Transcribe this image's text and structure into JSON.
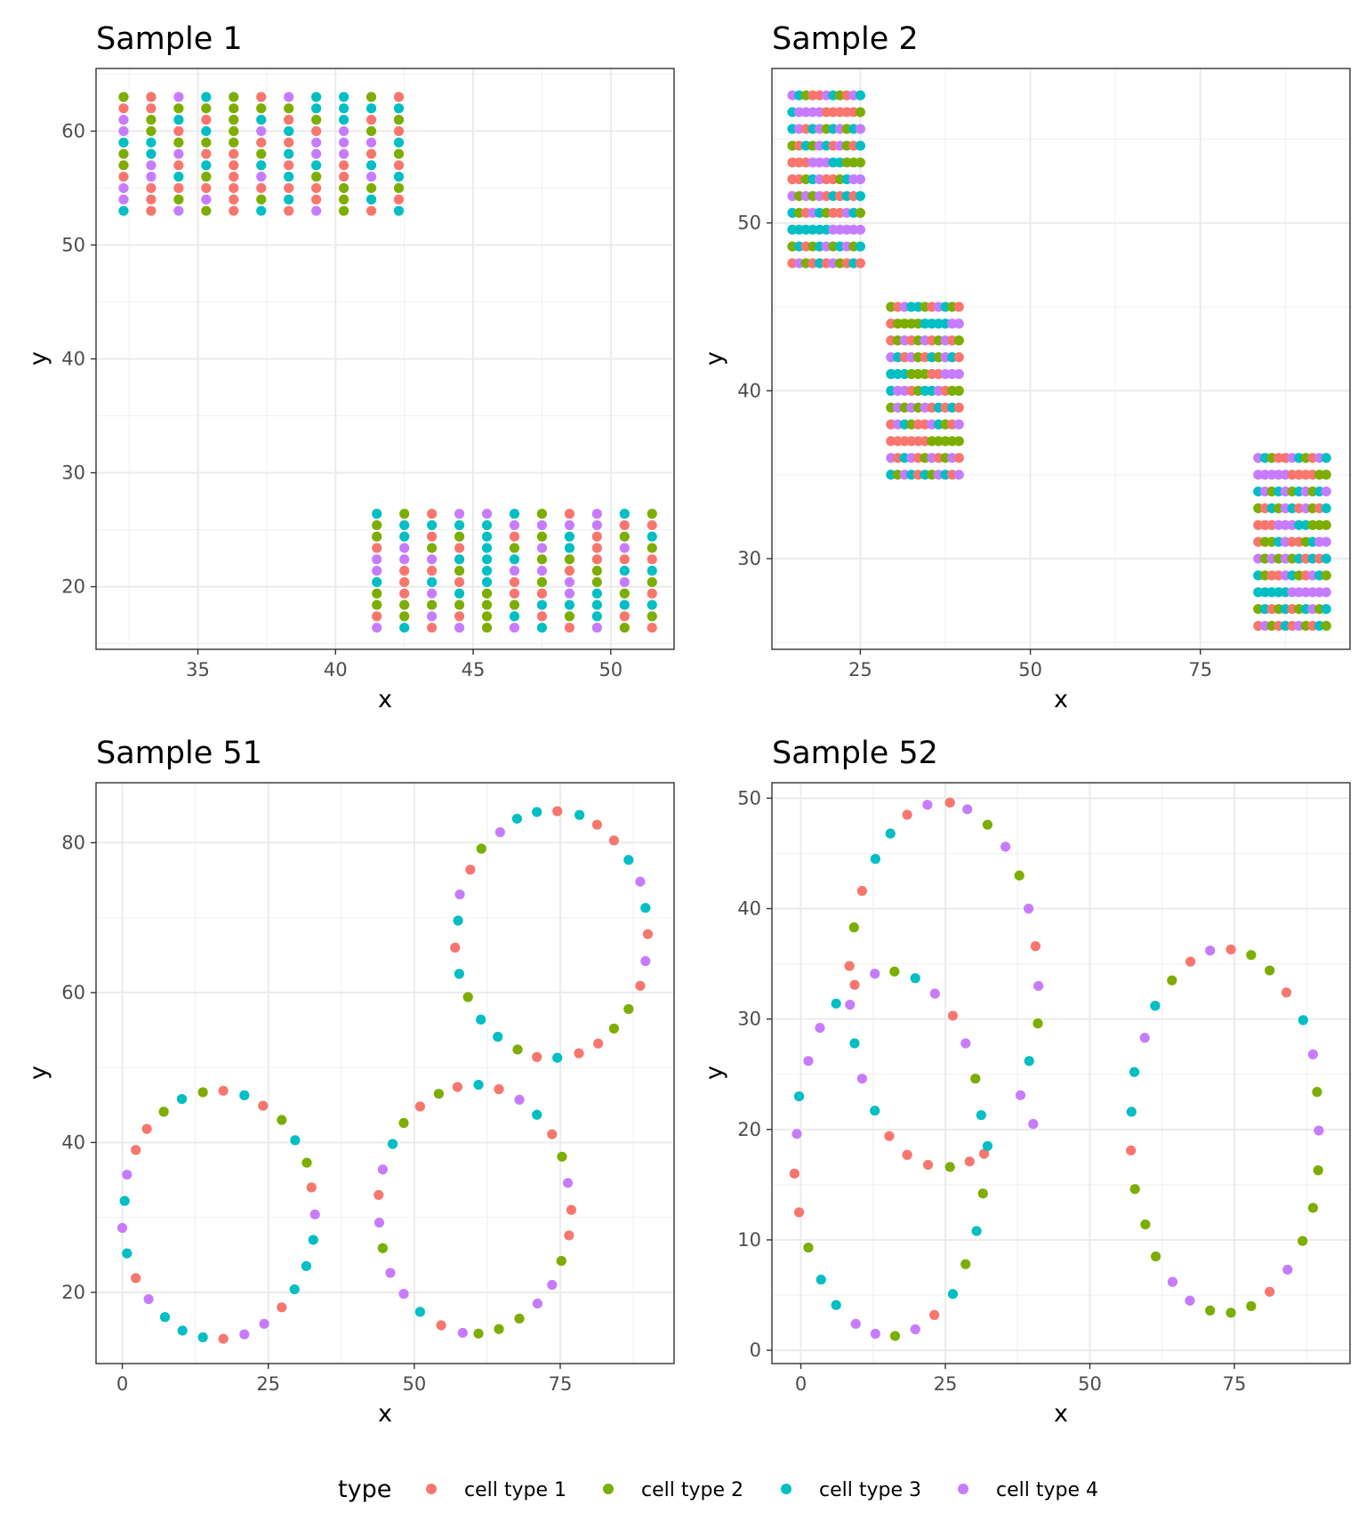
{
  "legend": {
    "title": "type",
    "entries": [
      {
        "label": "cell type 1",
        "color": "#F8766D"
      },
      {
        "label": "cell type 2",
        "color": "#7CAE00"
      },
      {
        "label": "cell type 3",
        "color": "#00BFC4"
      },
      {
        "label": "cell type 4",
        "color": "#C77CFF"
      }
    ]
  },
  "chart_data": [
    {
      "type": "scatter",
      "title": "Sample 1",
      "xlabel": "x",
      "ylabel": "y",
      "xlim": [
        31.3,
        52.3
      ],
      "ylim": [
        14.5,
        65.5
      ],
      "xticks": [
        35,
        40,
        45,
        50
      ],
      "yticks": [
        20,
        30,
        40,
        50,
        60
      ],
      "grid": true,
      "pattern": "grid",
      "groups": [
        {
          "x": [
            32.3,
            33.3,
            34.3,
            35.3,
            36.3,
            37.3,
            38.3,
            39.3,
            40.3,
            41.3,
            42.3
          ],
          "y": [
            53,
            54,
            55,
            56,
            57,
            58,
            59,
            60,
            61,
            62,
            63
          ],
          "color_seed": 3
        },
        {
          "x": [
            41.5,
            42.5,
            43.5,
            44.5,
            45.5,
            46.5,
            47.5,
            48.5,
            49.5,
            50.5,
            51.5
          ],
          "y": [
            16.4,
            17.4,
            18.4,
            19.4,
            20.4,
            21.4,
            22.4,
            23.4,
            24.4,
            25.4,
            26.4
          ],
          "color_seed": 11
        }
      ]
    },
    {
      "type": "scatter",
      "title": "Sample 2",
      "xlabel": "x",
      "ylabel": "y",
      "xlim": [
        12,
        97
      ],
      "ylim": [
        24.6,
        59.2
      ],
      "xticks": [
        25,
        50,
        75
      ],
      "yticks": [
        30,
        40,
        50
      ],
      "grid": true,
      "pattern": "grid",
      "groups": [
        {
          "x": [
            15,
            16,
            17,
            18,
            19,
            20,
            21,
            22,
            23,
            24,
            25
          ],
          "y": [
            47.6,
            48.6,
            49.6,
            50.6,
            51.6,
            52.6,
            53.6,
            54.6,
            55.6,
            56.6,
            57.6
          ],
          "color_seed": 5
        },
        {
          "x": [
            29.5,
            30.5,
            31.5,
            32.5,
            33.5,
            34.5,
            35.5,
            36.5,
            37.5,
            38.5,
            39.5
          ],
          "y": [
            35,
            36,
            37,
            38,
            39,
            40,
            41,
            42,
            43,
            44,
            45
          ],
          "color_seed": 17
        },
        {
          "x": [
            83.5,
            84.5,
            85.5,
            86.5,
            87.5,
            88.5,
            89.5,
            90.5,
            91.5,
            92.5,
            93.5
          ],
          "y": [
            26,
            27,
            28,
            29,
            30,
            31,
            32,
            33,
            34,
            35,
            36
          ],
          "color_seed": 29
        }
      ]
    },
    {
      "type": "scatter",
      "title": "Sample 51",
      "xlabel": "x",
      "ylabel": "y",
      "xlim": [
        -4.5,
        94.5
      ],
      "ylim": [
        10.5,
        88
      ],
      "xticks": [
        0,
        25,
        50,
        75
      ],
      "yticks": [
        20,
        40,
        60,
        80
      ],
      "grid": true,
      "pattern": "points",
      "points": [
        [
          0,
          28.6,
          3
        ],
        [
          0.4,
          32.2,
          2
        ],
        [
          0.8,
          25.2,
          2
        ],
        [
          0.8,
          35.7,
          3
        ],
        [
          2.3,
          39,
          0
        ],
        [
          2.3,
          21.9,
          0
        ],
        [
          4.2,
          41.8,
          0
        ],
        [
          4.5,
          19.1,
          3
        ],
        [
          7.1,
          44.1,
          1
        ],
        [
          7.3,
          16.7,
          2
        ],
        [
          10.2,
          45.8,
          2
        ],
        [
          10.3,
          14.9,
          2
        ],
        [
          13.8,
          46.7,
          1
        ],
        [
          13.8,
          14,
          2
        ],
        [
          17.3,
          46.9,
          0
        ],
        [
          17.3,
          13.8,
          0
        ],
        [
          20.9,
          46.3,
          2
        ],
        [
          20.9,
          14.4,
          3
        ],
        [
          24.1,
          44.9,
          0
        ],
        [
          24.3,
          15.8,
          3
        ],
        [
          27.3,
          43,
          1
        ],
        [
          27.3,
          18,
          0
        ],
        [
          29.6,
          40.3,
          2
        ],
        [
          29.5,
          20.4,
          2
        ],
        [
          31.6,
          37.3,
          1
        ],
        [
          31.5,
          23.5,
          2
        ],
        [
          32.4,
          34,
          0
        ],
        [
          32.7,
          27,
          2
        ],
        [
          33,
          30.4,
          3
        ],
        [
          43.9,
          33,
          0
        ],
        [
          44,
          29.3,
          3
        ],
        [
          44.6,
          36.4,
          3
        ],
        [
          44.6,
          25.9,
          1
        ],
        [
          45.9,
          22.6,
          3
        ],
        [
          46.3,
          39.8,
          2
        ],
        [
          48.2,
          42.6,
          1
        ],
        [
          48.2,
          19.8,
          3
        ],
        [
          51,
          44.8,
          0
        ],
        [
          51,
          17.4,
          2
        ],
        [
          54.2,
          46.5,
          1
        ],
        [
          54.6,
          15.6,
          0
        ],
        [
          57.4,
          47.4,
          0
        ],
        [
          58.3,
          14.6,
          3
        ],
        [
          61,
          47.7,
          2
        ],
        [
          61,
          14.5,
          1
        ],
        [
          64.5,
          47.1,
          0
        ],
        [
          64.5,
          15.1,
          1
        ],
        [
          68,
          45.7,
          3
        ],
        [
          68,
          16.5,
          1
        ],
        [
          71,
          43.7,
          2
        ],
        [
          71.1,
          18.5,
          3
        ],
        [
          73.6,
          41.1,
          0
        ],
        [
          73.6,
          21,
          3
        ],
        [
          75.3,
          38.1,
          1
        ],
        [
          75.2,
          24.2,
          1
        ],
        [
          76.3,
          34.6,
          3
        ],
        [
          76.5,
          27.6,
          0
        ],
        [
          76.9,
          31,
          0
        ],
        [
          57,
          66,
          0
        ],
        [
          57.5,
          69.6,
          2
        ],
        [
          57.7,
          62.5,
          2
        ],
        [
          57.8,
          73.1,
          3
        ],
        [
          59.2,
          59.4,
          1
        ],
        [
          59.6,
          76.4,
          0
        ],
        [
          61.4,
          56.4,
          2
        ],
        [
          61.5,
          79.2,
          1
        ],
        [
          64.3,
          54.1,
          2
        ],
        [
          64.7,
          81.4,
          3
        ],
        [
          67.7,
          52.4,
          1
        ],
        [
          67.6,
          83.2,
          2
        ],
        [
          71,
          51.4,
          0
        ],
        [
          71,
          84.1,
          2
        ],
        [
          74.5,
          51.3,
          2
        ],
        [
          74.5,
          84.2,
          0
        ],
        [
          78.2,
          51.9,
          0
        ],
        [
          78.3,
          83.7,
          2
        ],
        [
          81.5,
          53.2,
          0
        ],
        [
          81.3,
          82.4,
          0
        ],
        [
          84.2,
          55.2,
          1
        ],
        [
          84.2,
          80.3,
          0
        ],
        [
          86.7,
          57.8,
          1
        ],
        [
          86.7,
          77.7,
          2
        ],
        [
          88.7,
          60.9,
          0
        ],
        [
          88.7,
          74.8,
          3
        ],
        [
          89.6,
          64.2,
          3
        ],
        [
          89.6,
          71.3,
          2
        ],
        [
          90,
          67.8,
          0
        ]
      ]
    },
    {
      "type": "scatter",
      "title": "Sample 52",
      "xlabel": "x",
      "ylabel": "y",
      "xlim": [
        -5,
        95
      ],
      "ylim": [
        -1.2,
        51.4
      ],
      "xticks": [
        0,
        25,
        50,
        75
      ],
      "yticks": [
        0,
        10,
        20,
        30,
        40,
        50
      ],
      "grid": true,
      "pattern": "points",
      "points": [
        [
          -1.1,
          16,
          0
        ],
        [
          -0.7,
          19.6,
          3
        ],
        [
          -0.3,
          12.5,
          0
        ],
        [
          -0.3,
          23,
          2
        ],
        [
          1.3,
          26.2,
          3
        ],
        [
          1.3,
          9.3,
          1
        ],
        [
          3.3,
          29.2,
          3
        ],
        [
          3.5,
          6.4,
          2
        ],
        [
          6.1,
          31.4,
          2
        ],
        [
          6.1,
          4.1,
          2
        ],
        [
          8.4,
          34.8,
          0
        ],
        [
          8.5,
          31.3,
          3
        ],
        [
          9.3,
          33.1,
          0
        ],
        [
          9.3,
          27.8,
          2
        ],
        [
          9.2,
          38.3,
          1
        ],
        [
          9.5,
          2.4,
          3
        ],
        [
          10.6,
          24.6,
          3
        ],
        [
          10.6,
          41.6,
          0
        ],
        [
          12.8,
          34.1,
          3
        ],
        [
          12.8,
          21.7,
          2
        ],
        [
          12.9,
          1.5,
          3
        ],
        [
          12.9,
          44.5,
          2
        ],
        [
          15.3,
          19.4,
          0
        ],
        [
          15.5,
          46.8,
          2
        ],
        [
          16.2,
          34.3,
          1
        ],
        [
          16.3,
          1.3,
          1
        ],
        [
          18.4,
          17.7,
          0
        ],
        [
          18.4,
          48.5,
          0
        ],
        [
          19.8,
          33.7,
          2
        ],
        [
          19.8,
          1.9,
          3
        ],
        [
          21.9,
          49.4,
          3
        ],
        [
          22,
          16.8,
          0
        ],
        [
          23.2,
          32.3,
          3
        ],
        [
          23.1,
          3.2,
          0
        ],
        [
          25.8,
          16.6,
          1
        ],
        [
          25.8,
          49.6,
          0
        ],
        [
          26.3,
          30.3,
          0
        ],
        [
          26.3,
          5.1,
          2
        ],
        [
          28.5,
          27.8,
          3
        ],
        [
          28.5,
          7.8,
          1
        ],
        [
          28.8,
          49,
          3
        ],
        [
          29.2,
          17.1,
          0
        ],
        [
          30.2,
          24.6,
          1
        ],
        [
          30.4,
          10.8,
          2
        ],
        [
          31.2,
          21.3,
          2
        ],
        [
          31.5,
          14.2,
          1
        ],
        [
          31.7,
          17.8,
          0
        ],
        [
          32.3,
          18.5,
          2
        ],
        [
          32.3,
          47.6,
          1
        ],
        [
          35.4,
          45.6,
          3
        ],
        [
          37.8,
          43,
          1
        ],
        [
          38,
          23.1,
          3
        ],
        [
          39.4,
          40,
          3
        ],
        [
          39.5,
          26.2,
          2
        ],
        [
          40.2,
          20.5,
          3
        ],
        [
          40.6,
          36.6,
          0
        ],
        [
          41,
          29.6,
          1
        ],
        [
          41.1,
          33,
          3
        ],
        [
          57.1,
          18.1,
          0
        ],
        [
          57.2,
          21.6,
          2
        ],
        [
          57.7,
          25.2,
          2
        ],
        [
          57.8,
          14.6,
          1
        ],
        [
          59.5,
          28.3,
          3
        ],
        [
          59.6,
          11.4,
          1
        ],
        [
          61.3,
          31.2,
          2
        ],
        [
          61.4,
          8.5,
          1
        ],
        [
          64.2,
          33.5,
          1
        ],
        [
          64.3,
          6.2,
          3
        ],
        [
          67.4,
          35.2,
          0
        ],
        [
          67.3,
          4.5,
          3
        ],
        [
          70.8,
          36.2,
          3
        ],
        [
          70.8,
          3.6,
          1
        ],
        [
          74.4,
          36.3,
          0
        ],
        [
          74.4,
          3.4,
          1
        ],
        [
          77.9,
          35.8,
          1
        ],
        [
          77.9,
          4,
          1
        ],
        [
          81.1,
          34.4,
          1
        ],
        [
          81.1,
          5.3,
          0
        ],
        [
          84,
          32.4,
          0
        ],
        [
          84.2,
          7.3,
          3
        ],
        [
          86.9,
          29.9,
          2
        ],
        [
          86.8,
          9.9,
          1
        ],
        [
          88.6,
          26.8,
          3
        ],
        [
          88.6,
          12.9,
          1
        ],
        [
          89.3,
          23.4,
          1
        ],
        [
          89.5,
          16.3,
          1
        ],
        [
          89.6,
          19.9,
          3
        ]
      ]
    }
  ]
}
